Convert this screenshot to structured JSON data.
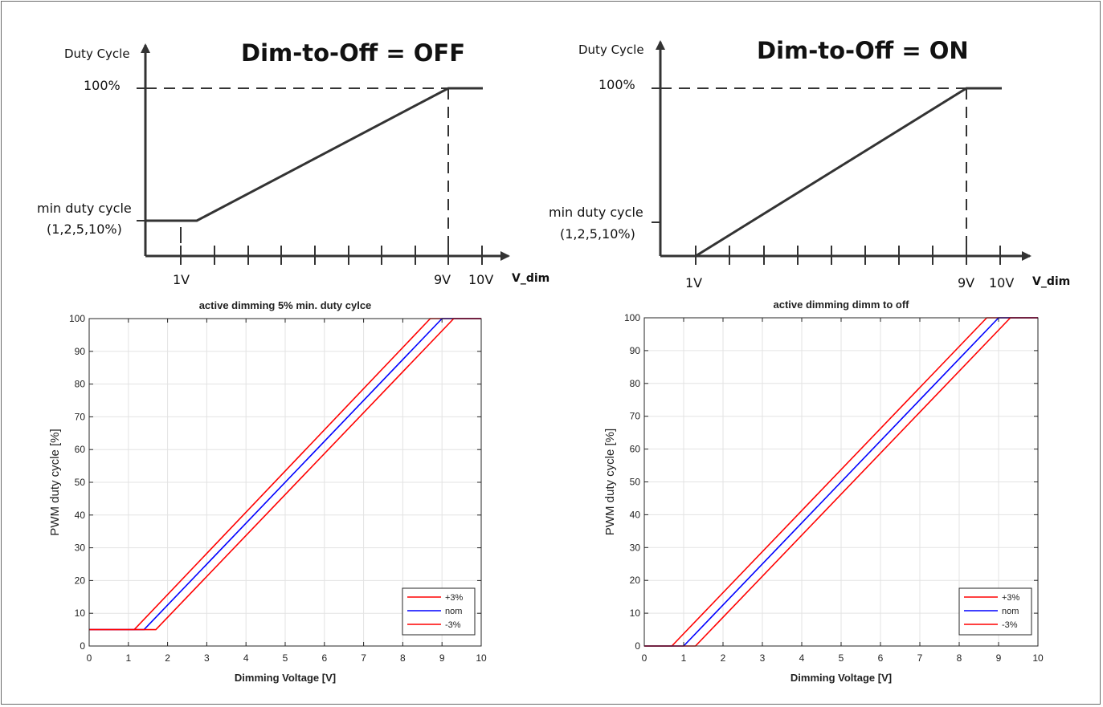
{
  "diagrams": [
    {
      "title": "Dim-to-Off = OFF",
      "y_axis_label": "Duty Cycle",
      "x_axis_label": "V_dim",
      "top_label": "100%",
      "min_label_line1": "min duty cycle",
      "min_label_line2": "(1,2,5,10%)",
      "x_ticks": [
        "1V",
        "9V",
        "10V"
      ]
    },
    {
      "title": "Dim-to-Off = ON",
      "y_axis_label": "Duty Cycle",
      "x_axis_label": "V_dim",
      "top_label": "100%",
      "min_label_line1": "min duty cycle",
      "min_label_line2": "(1,2,5,10%)",
      "x_ticks": [
        "1V",
        "9V",
        "10V"
      ]
    }
  ],
  "chart_data": [
    {
      "type": "line",
      "title": "active dimming 5% min. duty cylce",
      "xlabel": "Dimming Voltage [V]",
      "ylabel": "PWM duty cycle [%]",
      "xlim": [
        0,
        10
      ],
      "ylim": [
        0,
        100
      ],
      "xticks": [
        0,
        1,
        2,
        3,
        4,
        5,
        6,
        7,
        8,
        9,
        10
      ],
      "yticks": [
        0,
        10,
        20,
        30,
        40,
        50,
        60,
        70,
        80,
        90,
        100
      ],
      "grid": true,
      "legend_position": "bottom-right",
      "series": [
        {
          "name": "+3%",
          "color": "#ff0000",
          "x": [
            0,
            1.15,
            8.7,
            10
          ],
          "y": [
            5,
            5,
            100,
            100
          ]
        },
        {
          "name": "nom",
          "color": "#0000ff",
          "x": [
            0,
            1.4,
            9.0,
            10
          ],
          "y": [
            5,
            5,
            100,
            100
          ]
        },
        {
          "name": "-3%",
          "color": "#ff0000",
          "x": [
            0,
            1.7,
            9.3,
            10
          ],
          "y": [
            5,
            5,
            100,
            100
          ]
        }
      ]
    },
    {
      "type": "line",
      "title": "active dimming dimm to off",
      "xlabel": "Dimming Voltage [V]",
      "ylabel": "PWM duty cycle [%]",
      "xlim": [
        0,
        10
      ],
      "ylim": [
        0,
        100
      ],
      "xticks": [
        0,
        1,
        2,
        3,
        4,
        5,
        6,
        7,
        8,
        9,
        10
      ],
      "yticks": [
        0,
        10,
        20,
        30,
        40,
        50,
        60,
        70,
        80,
        90,
        100
      ],
      "grid": true,
      "legend_position": "bottom-right",
      "series": [
        {
          "name": "+3%",
          "color": "#ff0000",
          "x": [
            0,
            0.7,
            8.7,
            10
          ],
          "y": [
            0,
            0,
            100,
            100
          ]
        },
        {
          "name": "nom",
          "color": "#0000ff",
          "x": [
            0,
            1.0,
            9.0,
            10
          ],
          "y": [
            0,
            0,
            100,
            100
          ]
        },
        {
          "name": "-3%",
          "color": "#ff0000",
          "x": [
            0,
            1.3,
            9.3,
            10
          ],
          "y": [
            0,
            0,
            100,
            100
          ]
        }
      ]
    }
  ]
}
